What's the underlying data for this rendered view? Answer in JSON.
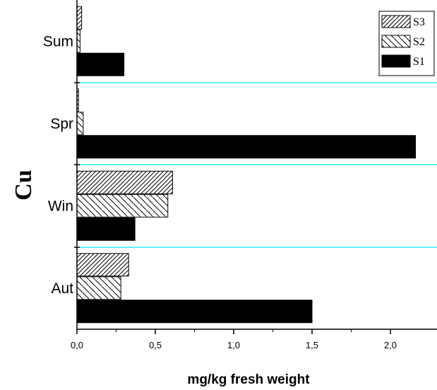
{
  "chart_data": {
    "type": "bar",
    "orientation": "horizontal",
    "categories": [
      "Aut",
      "Win",
      "Spr",
      "Sum"
    ],
    "series": [
      {
        "name": "S3",
        "pattern": "forward-hatch",
        "values": [
          0.33,
          0.61,
          0.01,
          0.03
        ]
      },
      {
        "name": "S2",
        "pattern": "back-hatch",
        "values": [
          0.28,
          0.58,
          0.04,
          0.02
        ]
      },
      {
        "name": "S1",
        "pattern": "solid",
        "values": [
          1.5,
          0.37,
          2.16,
          0.3
        ]
      }
    ],
    "xlabel": "mg/kg fresh weight",
    "ylabel": "Cu",
    "xlim": [
      0.0,
      2.2
    ],
    "xticks": [
      "0,0",
      "0,5",
      "1,0",
      "1,5",
      "2,0"
    ],
    "grid": false,
    "separator_color": "#00e5ee",
    "legend": {
      "position": "top-right",
      "entries": [
        "S3",
        "S2",
        "S1"
      ]
    }
  }
}
